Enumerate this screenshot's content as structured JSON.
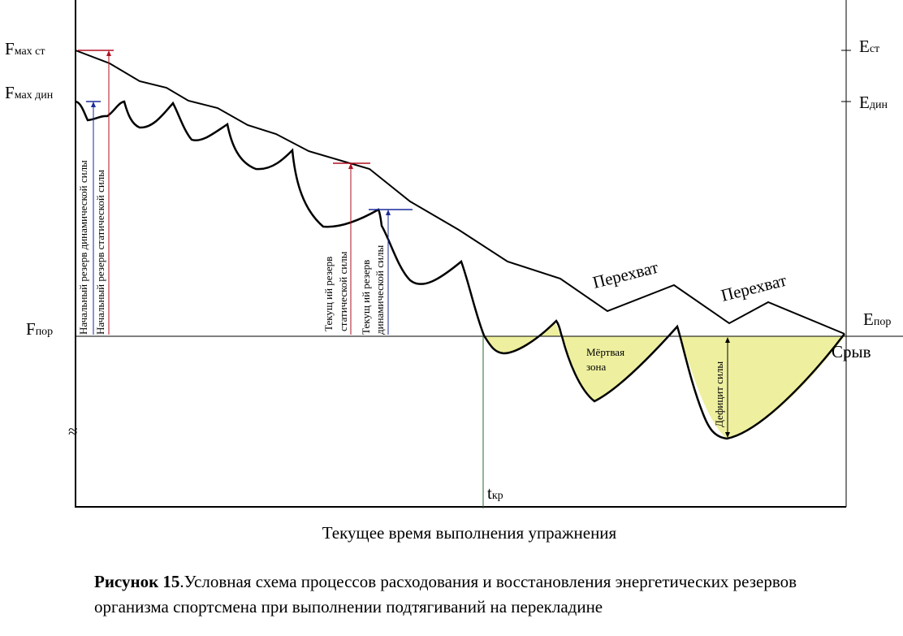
{
  "labels": {
    "fmax_st": {
      "main": "F",
      "sub": "мах ст"
    },
    "fmax_din": {
      "main": "F",
      "sub": "мах дин"
    },
    "fpor": {
      "main": "F",
      "sub": "пор"
    },
    "est": {
      "main": "E",
      "sub": "ст"
    },
    "edin": {
      "main": "E",
      "sub": "дин"
    },
    "epor": {
      "main": "E",
      "sub": "пор"
    },
    "tkr": {
      "main": "t",
      "sub": "кр"
    },
    "approx": "≈",
    "x_axis_title": "Текущее время выполнения упражнения"
  },
  "annotations": {
    "initial_dynamic": "Начальный резерв динамической силы",
    "initial_static": "Начальный резерв статической силы",
    "current_static_line1": "Текущ ий резерв",
    "current_static_line2": "статической силы",
    "current_dynamic_line1": "Текущ ий резерв",
    "current_dynamic_line2": "динамической силы",
    "regrip1": "Перехват",
    "regrip2": "Перехват",
    "dead_zone_line1": "Мёртвая",
    "dead_zone_line2": "зона",
    "force_deficit": "Дефицит силы",
    "breakoff": "Срыв"
  },
  "caption": {
    "bold": "Рисунок 15",
    "text": ".Условная схема процессов расходования  и восстановления энергетических резервов  организма спортсмена при выполнении подтягиваний  на  перекладине"
  },
  "colors": {
    "fill_zone": "#eef0a0",
    "static_marker": "#b01020",
    "dynamic_marker": "#1a2a9a",
    "tkr_line": "#2a6a2a"
  }
}
